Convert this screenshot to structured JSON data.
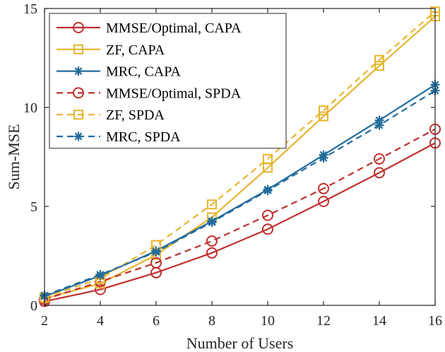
{
  "chart_data": {
    "type": "line",
    "title": "",
    "xlabel": "Number of Users",
    "ylabel": "Sum-MSE",
    "x": [
      2,
      4,
      6,
      8,
      10,
      12,
      14,
      16
    ],
    "xlim": [
      2,
      16
    ],
    "ylim": [
      0,
      15
    ],
    "xticks": [
      2,
      4,
      6,
      8,
      10,
      12,
      14,
      16
    ],
    "yticks": [
      0,
      5,
      10,
      15
    ],
    "grid": false,
    "legend_position": "top-left",
    "series": [
      {
        "name": "MMSE/Optimal, CAPA",
        "color": "#c0302f",
        "dash": "solid",
        "marker": "circle",
        "values": [
          0.2,
          0.8,
          1.65,
          2.65,
          3.85,
          5.25,
          6.7,
          8.2
        ]
      },
      {
        "name": "ZF, CAPA",
        "color": "#e7b52f",
        "dash": "solid",
        "marker": "square",
        "values": [
          0.35,
          1.1,
          2.55,
          4.45,
          6.95,
          9.55,
          12.1,
          14.6
        ]
      },
      {
        "name": "MRC, CAPA",
        "color": "#236c9c",
        "dash": "solid",
        "marker": "star",
        "values": [
          0.45,
          1.5,
          2.75,
          4.25,
          5.85,
          7.6,
          9.35,
          11.15
        ]
      },
      {
        "name": "MMSE/Optimal, SPDA",
        "color": "#c0302f",
        "dash": "dashed",
        "marker": "circle",
        "values": [
          0.3,
          1.2,
          2.15,
          3.25,
          4.55,
          5.9,
          7.4,
          8.9
        ]
      },
      {
        "name": "ZF, SPDA",
        "color": "#e7b52f",
        "dash": "dashed",
        "marker": "square",
        "values": [
          0.4,
          1.35,
          3.05,
          5.1,
          7.4,
          9.85,
          12.4,
          14.85
        ]
      },
      {
        "name": "MRC, SPDA",
        "color": "#236c9c",
        "dash": "dashed",
        "marker": "star",
        "values": [
          0.5,
          1.55,
          2.7,
          4.2,
          5.8,
          7.45,
          9.1,
          10.85
        ]
      }
    ]
  }
}
